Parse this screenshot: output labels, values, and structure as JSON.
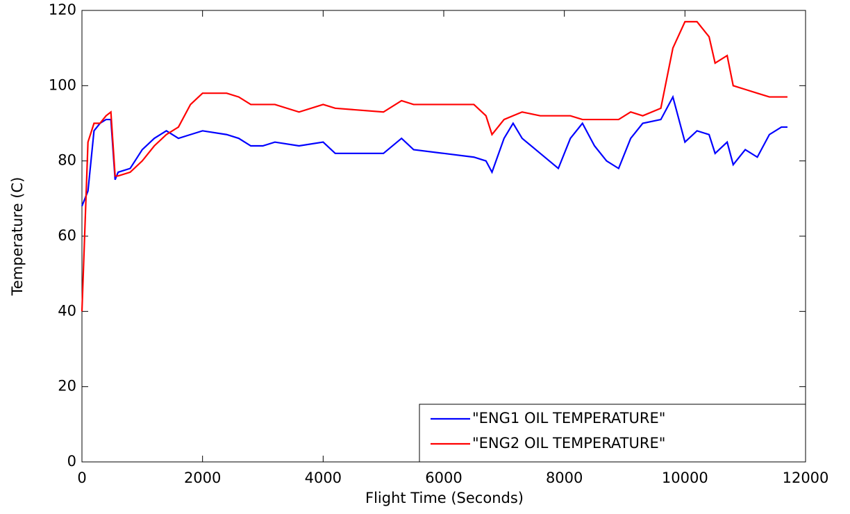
{
  "chart_data": {
    "type": "line",
    "xlabel": "Flight Time (Seconds)",
    "ylabel": "Temperature (C)",
    "x": [
      0,
      100,
      200,
      300,
      400,
      480,
      550,
      600,
      800,
      1000,
      1200,
      1400,
      1600,
      1800,
      2000,
      2400,
      2600,
      2800,
      3000,
      3200,
      3600,
      4000,
      4200,
      5000,
      5300,
      5500,
      6000,
      6500,
      6700,
      6800,
      7000,
      7150,
      7300,
      7600,
      7900,
      8100,
      8300,
      8500,
      8700,
      8900,
      9100,
      9300,
      9600,
      9800,
      10000,
      10200,
      10400,
      10500,
      10700,
      10800,
      11000,
      11200,
      11400,
      11600,
      11700
    ],
    "series": [
      {
        "name": "\"ENG1 OIL TEMPERATURE\"",
        "color": "#0000ff",
        "values": [
          68,
          72,
          88,
          90,
          91,
          91,
          75,
          77,
          78,
          83,
          86,
          88,
          86,
          87,
          88,
          87,
          86,
          84,
          84,
          85,
          84,
          85,
          82,
          82,
          86,
          83,
          82,
          81,
          80,
          77,
          86,
          90,
          86,
          82,
          78,
          86,
          90,
          84,
          80,
          78,
          86,
          90,
          91,
          97,
          85,
          88,
          87,
          82,
          85,
          79,
          83,
          81,
          87,
          89,
          89
        ]
      },
      {
        "name": "\"ENG2 OIL TEMPERATURE\"",
        "color": "#ff0000",
        "values": [
          40,
          85,
          90,
          90,
          92,
          93,
          76,
          76,
          77,
          80,
          84,
          87,
          89,
          95,
          98,
          98,
          97,
          95,
          95,
          95,
          93,
          95,
          94,
          93,
          96,
          95,
          95,
          95,
          92,
          87,
          91,
          92,
          93,
          92,
          92,
          92,
          91,
          91,
          91,
          91,
          93,
          92,
          94,
          110,
          117,
          117,
          113,
          106,
          108,
          100,
          99,
          98,
          97,
          97,
          97
        ]
      }
    ],
    "xlim": [
      0,
      12000
    ],
    "xticks": [
      0,
      2000,
      4000,
      6000,
      8000,
      10000,
      12000
    ],
    "ylim": [
      0,
      120
    ],
    "yticks": [
      0,
      20,
      40,
      60,
      80,
      100,
      120
    ],
    "legend": "lower right"
  }
}
